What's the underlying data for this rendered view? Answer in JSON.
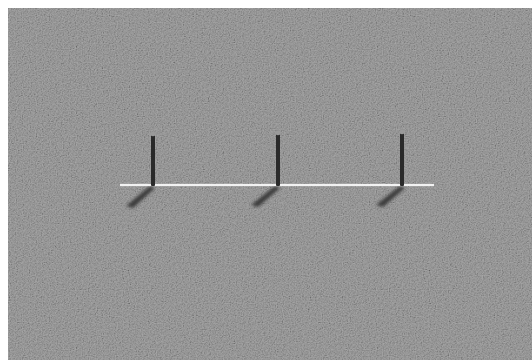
{
  "scene": {
    "surface": {
      "texture": "gravel-noise",
      "base_color": "#8c8c8c",
      "border_color": "#ffffff"
    },
    "line": {
      "color": "#f2f2f2"
    },
    "poles": {
      "count": 3,
      "shaft_color": "#2a2a2a",
      "cap_color": "#9a9a9a",
      "shadow_color": "#3a3a3a"
    }
  }
}
